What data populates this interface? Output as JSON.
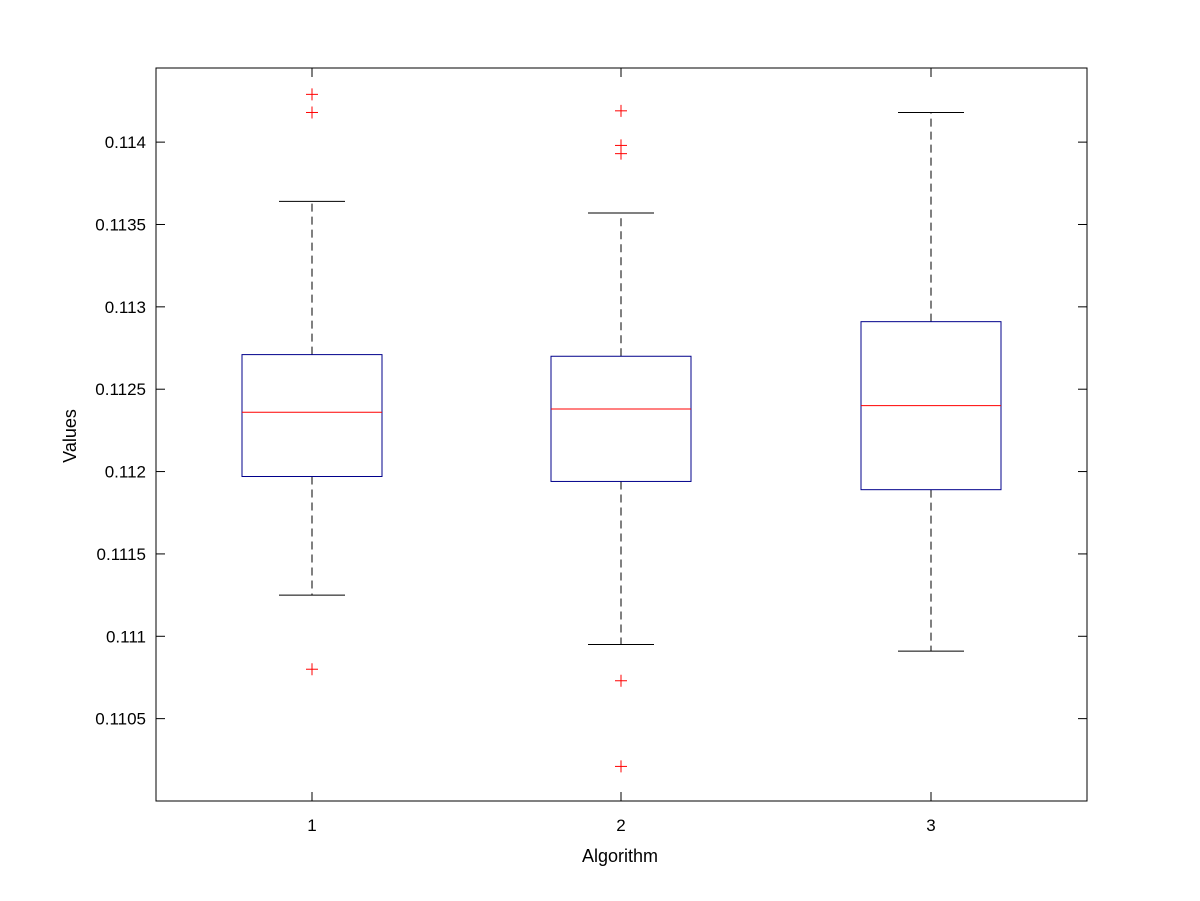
{
  "chart_data": {
    "type": "box",
    "title": "",
    "xlabel": "Algorithm",
    "ylabel": "Values",
    "ylim": [
      0.11,
      0.11445
    ],
    "yticks": [
      "0.1105",
      "0.111",
      "0.1115",
      "0.112",
      "0.1125",
      "0.113",
      "0.1135",
      "0.114"
    ],
    "ytick_values": [
      0.1105,
      0.111,
      0.1115,
      0.112,
      0.1125,
      0.113,
      0.1135,
      0.114
    ],
    "categories": [
      "1",
      "2",
      "3"
    ],
    "grid": false,
    "legend": "none",
    "colors": {
      "box": "#00008b",
      "median": "#ff0000",
      "whisker": "#000000",
      "outlier": "#ff0000",
      "axes": "#000000"
    },
    "boxes": [
      {
        "label": "1",
        "whisker_low": 0.11125,
        "q1": 0.11197,
        "median": 0.11236,
        "q3": 0.11271,
        "whisker_high": 0.11364,
        "outliers": [
          0.11429,
          0.11418,
          0.1108
        ]
      },
      {
        "label": "2",
        "whisker_low": 0.11095,
        "q1": 0.11194,
        "median": 0.11238,
        "q3": 0.1127,
        "whisker_high": 0.11357,
        "outliers": [
          0.11419,
          0.11398,
          0.11393,
          0.11073,
          0.11021
        ]
      },
      {
        "label": "3",
        "whisker_low": 0.11091,
        "q1": 0.11189,
        "median": 0.1124,
        "q3": 0.11291,
        "whisker_high": 0.11418,
        "outliers": []
      }
    ]
  }
}
